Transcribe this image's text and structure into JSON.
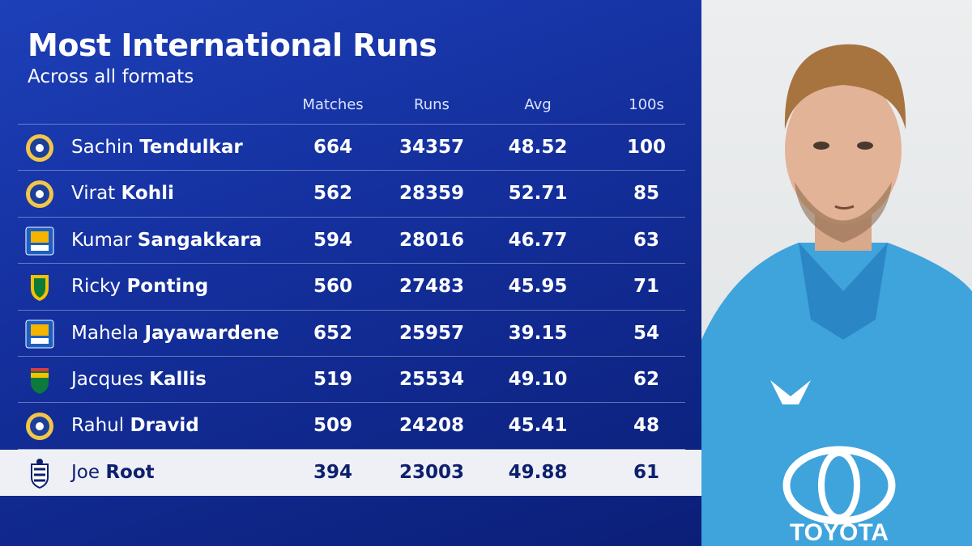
{
  "header": {
    "title": "Most International Runs",
    "subtitle": "Across all formats"
  },
  "table": {
    "columns": [
      "Matches",
      "Runs",
      "Avg",
      "100s"
    ],
    "rows": [
      {
        "first": "Sachin",
        "last": "Tendulkar",
        "stats": [
          "664",
          "34357",
          "48.52",
          "100"
        ]
      },
      {
        "first": "Virat",
        "last": "Kohli",
        "stats": [
          "562",
          "28359",
          "52.71",
          "85"
        ]
      },
      {
        "first": "Kumar",
        "last": "Sangakkara",
        "stats": [
          "594",
          "28016",
          "46.77",
          "63"
        ]
      },
      {
        "first": "Ricky",
        "last": "Ponting",
        "stats": [
          "560",
          "27483",
          "45.95",
          "71"
        ]
      },
      {
        "first": "Mahela",
        "last": "Jayawardene",
        "stats": [
          "652",
          "25957",
          "39.15",
          "54"
        ]
      },
      {
        "first": "Jacques",
        "last": "Kallis",
        "stats": [
          "519",
          "25534",
          "49.10",
          "62"
        ]
      },
      {
        "first": "Rahul",
        "last": "Dravid",
        "stats": [
          "509",
          "24208",
          "45.41",
          "48"
        ]
      },
      {
        "first": "Joe",
        "last": "Root",
        "stats": [
          "394",
          "23003",
          "49.88",
          "61"
        ]
      }
    ]
  }
}
